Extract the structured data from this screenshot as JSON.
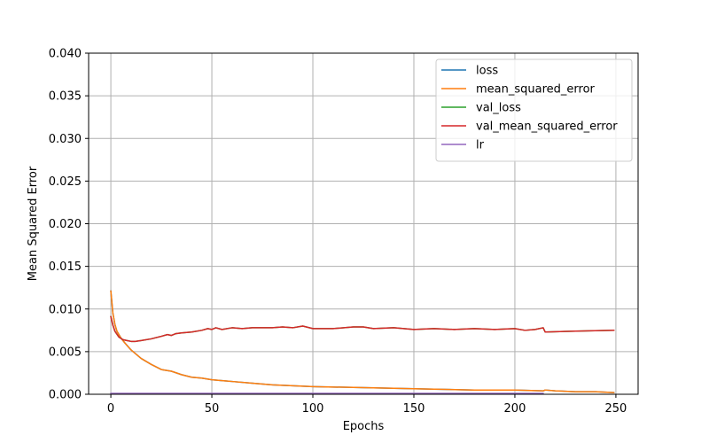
{
  "chart_data": {
    "type": "line",
    "title": "",
    "xlabel": "Epochs",
    "ylabel": "Mean Squared Error",
    "xlim": [
      -11,
      261
    ],
    "ylim": [
      0.0,
      0.04
    ],
    "xticks": [
      0,
      50,
      100,
      150,
      200,
      250
    ],
    "yticks": [
      0.0,
      0.005,
      0.01,
      0.015,
      0.02,
      0.025,
      0.03,
      0.035,
      0.04
    ],
    "xtick_labels": [
      "0",
      "50",
      "100",
      "150",
      "200",
      "250"
    ],
    "ytick_labels": [
      "0.000",
      "0.005",
      "0.010",
      "0.015",
      "0.020",
      "0.025",
      "0.030",
      "0.035",
      "0.040"
    ],
    "grid": true,
    "legend_position": "upper-right",
    "series": [
      {
        "name": "loss",
        "color": "#1f77b4",
        "x": [
          0,
          1,
          2,
          3,
          5,
          7,
          10,
          15,
          20,
          25,
          30,
          35,
          40,
          45,
          50,
          60,
          70,
          80,
          90,
          100,
          120,
          140,
          160,
          180,
          200,
          214,
          215,
          220,
          230,
          240,
          249
        ],
        "y": [
          0.0121,
          0.0095,
          0.0082,
          0.0074,
          0.0066,
          0.006,
          0.0052,
          0.0042,
          0.0035,
          0.0029,
          0.0027,
          0.0023,
          0.002,
          0.0019,
          0.0017,
          0.0015,
          0.0013,
          0.0011,
          0.001,
          0.0009,
          0.0008,
          0.0007,
          0.0006,
          0.0005,
          0.0005,
          0.0004,
          0.0005,
          0.0004,
          0.0003,
          0.0003,
          0.0002
        ]
      },
      {
        "name": "mean_squared_error",
        "color": "#ff7f0e",
        "x": [
          0,
          1,
          2,
          3,
          5,
          7,
          10,
          15,
          20,
          25,
          30,
          35,
          40,
          45,
          50,
          60,
          70,
          80,
          90,
          100,
          120,
          140,
          160,
          180,
          200,
          214,
          215,
          220,
          230,
          240,
          249
        ],
        "y": [
          0.0121,
          0.0095,
          0.0082,
          0.0074,
          0.0066,
          0.006,
          0.0052,
          0.0042,
          0.0035,
          0.0029,
          0.0027,
          0.0023,
          0.002,
          0.0019,
          0.0017,
          0.0015,
          0.0013,
          0.0011,
          0.001,
          0.0009,
          0.0008,
          0.0007,
          0.0006,
          0.0005,
          0.0005,
          0.0004,
          0.0005,
          0.0004,
          0.0003,
          0.0003,
          0.0002
        ]
      },
      {
        "name": "val_loss",
        "color": "#2ca02c",
        "x": [
          0,
          1,
          2,
          4,
          6,
          8,
          10,
          12,
          15,
          20,
          25,
          28,
          30,
          32,
          35,
          40,
          45,
          48,
          50,
          52,
          55,
          60,
          65,
          70,
          80,
          85,
          90,
          95,
          100,
          110,
          120,
          125,
          130,
          140,
          150,
          160,
          170,
          180,
          190,
          200,
          205,
          210,
          214,
          215,
          230,
          249
        ],
        "y": [
          0.0091,
          0.0081,
          0.0074,
          0.0067,
          0.0064,
          0.0063,
          0.0062,
          0.0062,
          0.0063,
          0.0065,
          0.0068,
          0.007,
          0.0069,
          0.0071,
          0.0072,
          0.0073,
          0.0075,
          0.0077,
          0.0076,
          0.0078,
          0.0076,
          0.0078,
          0.0077,
          0.0078,
          0.0078,
          0.0079,
          0.0078,
          0.008,
          0.0077,
          0.0077,
          0.0079,
          0.0079,
          0.0077,
          0.0078,
          0.0076,
          0.0077,
          0.0076,
          0.0077,
          0.0076,
          0.0077,
          0.0075,
          0.0076,
          0.0078,
          0.0073,
          0.0074,
          0.0075
        ]
      },
      {
        "name": "val_mean_squared_error",
        "color": "#d62728",
        "x": [
          0,
          1,
          2,
          4,
          6,
          8,
          10,
          12,
          15,
          20,
          25,
          28,
          30,
          32,
          35,
          40,
          45,
          48,
          50,
          52,
          55,
          60,
          65,
          70,
          80,
          85,
          90,
          95,
          100,
          110,
          120,
          125,
          130,
          140,
          150,
          160,
          170,
          180,
          190,
          200,
          205,
          210,
          214,
          215,
          230,
          249
        ],
        "y": [
          0.0091,
          0.0081,
          0.0074,
          0.0067,
          0.0064,
          0.0063,
          0.0062,
          0.0062,
          0.0063,
          0.0065,
          0.0068,
          0.007,
          0.0069,
          0.0071,
          0.0072,
          0.0073,
          0.0075,
          0.0077,
          0.0076,
          0.0078,
          0.0076,
          0.0078,
          0.0077,
          0.0078,
          0.0078,
          0.0079,
          0.0078,
          0.008,
          0.0077,
          0.0077,
          0.0079,
          0.0079,
          0.0077,
          0.0078,
          0.0076,
          0.0077,
          0.0076,
          0.0077,
          0.0076,
          0.0077,
          0.0075,
          0.0076,
          0.0078,
          0.0073,
          0.0074,
          0.0075
        ]
      },
      {
        "name": "lr",
        "color": "#9467bd",
        "x": [
          0,
          214
        ],
        "y": [
          0.0001,
          0.0001
        ]
      }
    ]
  }
}
